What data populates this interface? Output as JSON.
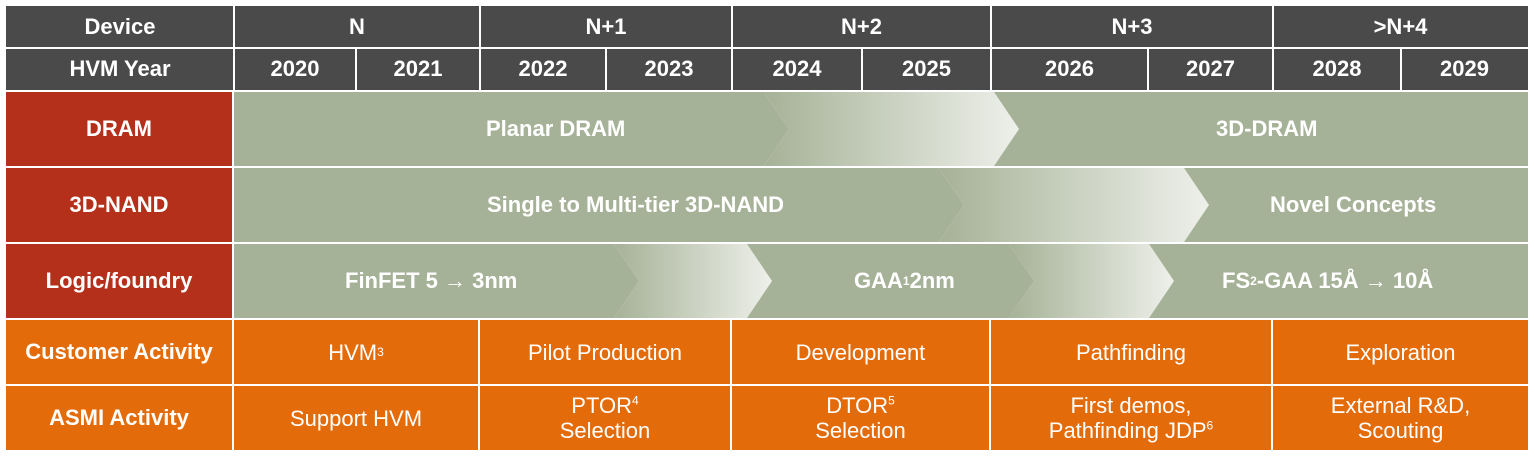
{
  "header": {
    "device_label": "Device",
    "hvm_label": "HVM Year",
    "nodes": [
      "N",
      "N+1",
      "N+2",
      "N+3",
      ">N+4"
    ],
    "years": [
      "2020",
      "2021",
      "2022",
      "2023",
      "2024",
      "2025",
      "2026",
      "2027",
      "2028",
      "2029"
    ]
  },
  "rows": {
    "dram": {
      "label": "DRAM",
      "phase1": "Planar DRAM",
      "phase2": "3D-DRAM"
    },
    "nand": {
      "label": "3D-NAND",
      "phase1": "Single to Multi-tier  3D-NAND",
      "phase2": "Novel Concepts"
    },
    "logic": {
      "label": "Logic/foundry",
      "phase1": "FinFET 5 → 3nm",
      "phase2_a": "GAA",
      "phase2_sup": "1",
      "phase2_b": " 2nm",
      "phase3_a": "FS",
      "phase3_sup": "2",
      "phase3_b": "-GAA 15Å → 10Å"
    }
  },
  "customer": {
    "label": "Customer Activity",
    "hvm": "HVM",
    "hvm_sup": "3",
    "pilot": "Pilot Production",
    "development": "Development",
    "pathfinding": "Pathfinding",
    "exploration": "Exploration"
  },
  "asmi": {
    "label": "ASMI Activity",
    "support": "Support HVM",
    "ptor": "PTOR",
    "ptor_sup": "4",
    "ptor_line2": "Selection",
    "dtor": "DTOR",
    "dtor_sup": "5",
    "dtor_line2": "Selection",
    "first_demos": "First demos,",
    "pathfinding_jdp": "Pathfinding JDP",
    "jdp_sup": "6",
    "external": "External R&D,",
    "scouting": "Scouting"
  },
  "colors": {
    "header_bg": "#4a4a4a",
    "row_label_red": "#b5301a",
    "band_green": "#a6b297",
    "fade_light": "#e4e8de",
    "activity_orange": "#e36b0a"
  }
}
